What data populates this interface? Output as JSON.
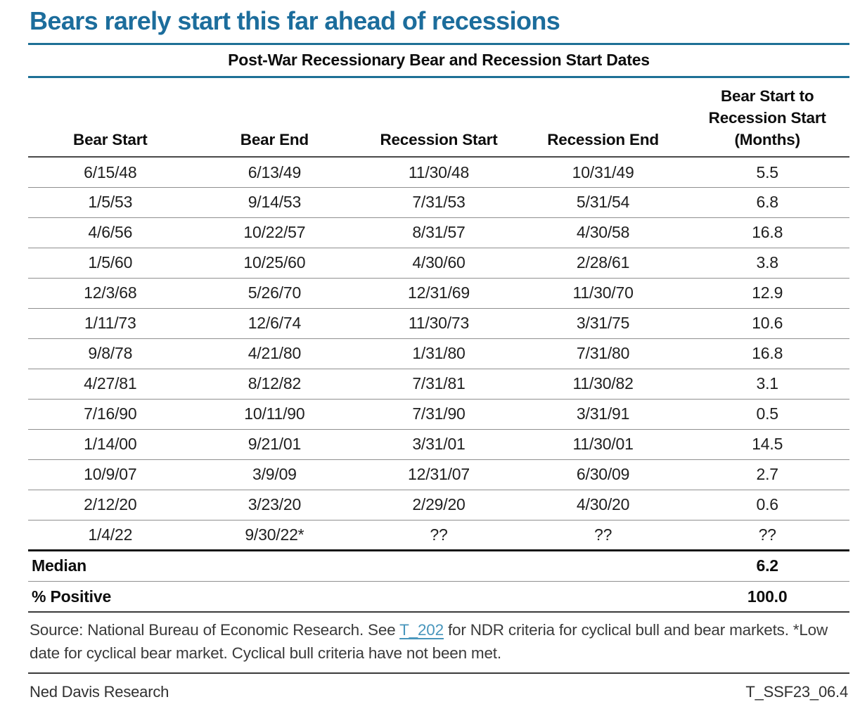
{
  "title": "Bears rarely start this far ahead of recessions",
  "chart_data": {
    "type": "table",
    "title": "Post-War Recessionary Bear and Recession Start Dates",
    "headers": [
      "Bear Start",
      "Bear End",
      "Recession Start",
      "Recession End"
    ],
    "months_header_lines": [
      "Bear Start to",
      "Recession Start",
      "(Months)"
    ],
    "columns": [
      "Bear Start",
      "Bear End",
      "Recession Start",
      "Recession End",
      "Bear Start to Recession Start (Months)"
    ],
    "rows": [
      [
        "6/15/48",
        "6/13/49",
        "11/30/48",
        "10/31/49",
        "5.5"
      ],
      [
        "1/5/53",
        "9/14/53",
        "7/31/53",
        "5/31/54",
        "6.8"
      ],
      [
        "4/6/56",
        "10/22/57",
        "8/31/57",
        "4/30/58",
        "16.8"
      ],
      [
        "1/5/60",
        "10/25/60",
        "4/30/60",
        "2/28/61",
        "3.8"
      ],
      [
        "12/3/68",
        "5/26/70",
        "12/31/69",
        "11/30/70",
        "12.9"
      ],
      [
        "1/11/73",
        "12/6/74",
        "11/30/73",
        "3/31/75",
        "10.6"
      ],
      [
        "9/8/78",
        "4/21/80",
        "1/31/80",
        "7/31/80",
        "16.8"
      ],
      [
        "4/27/81",
        "8/12/82",
        "7/31/81",
        "11/30/82",
        "3.1"
      ],
      [
        "7/16/90",
        "10/11/90",
        "7/31/90",
        "3/31/91",
        "0.5"
      ],
      [
        "1/14/00",
        "9/21/01",
        "3/31/01",
        "11/30/01",
        "14.5"
      ],
      [
        "10/9/07",
        "3/9/09",
        "12/31/07",
        "6/30/09",
        "2.7"
      ],
      [
        "2/12/20",
        "3/23/20",
        "2/29/20",
        "4/30/20",
        "0.6"
      ],
      [
        "1/4/22",
        "9/30/22*",
        "??",
        "??",
        "??"
      ]
    ],
    "summary": [
      {
        "label": "Median",
        "value": "6.2"
      },
      {
        "label": "% Positive",
        "value": "100.0"
      }
    ]
  },
  "footnote": {
    "text_before_link": "Source: National Bureau of Economic Research. See ",
    "link_label": "T_202",
    "text_after_link": " for NDR criteria for cyclical bull and bear markets. *Low date for cyclical bear market. Cyclical bull criteria have not been met."
  },
  "footer": {
    "left": "Ned Davis Research",
    "right": "T_SSF23_06.4"
  },
  "colors": {
    "title_teal": "#1c6d9c",
    "rule_teal": "#1e7096",
    "link_teal": "#4896bc",
    "row_divider_gray": "#8f8f8f",
    "text_black": "#0d0d0d"
  }
}
